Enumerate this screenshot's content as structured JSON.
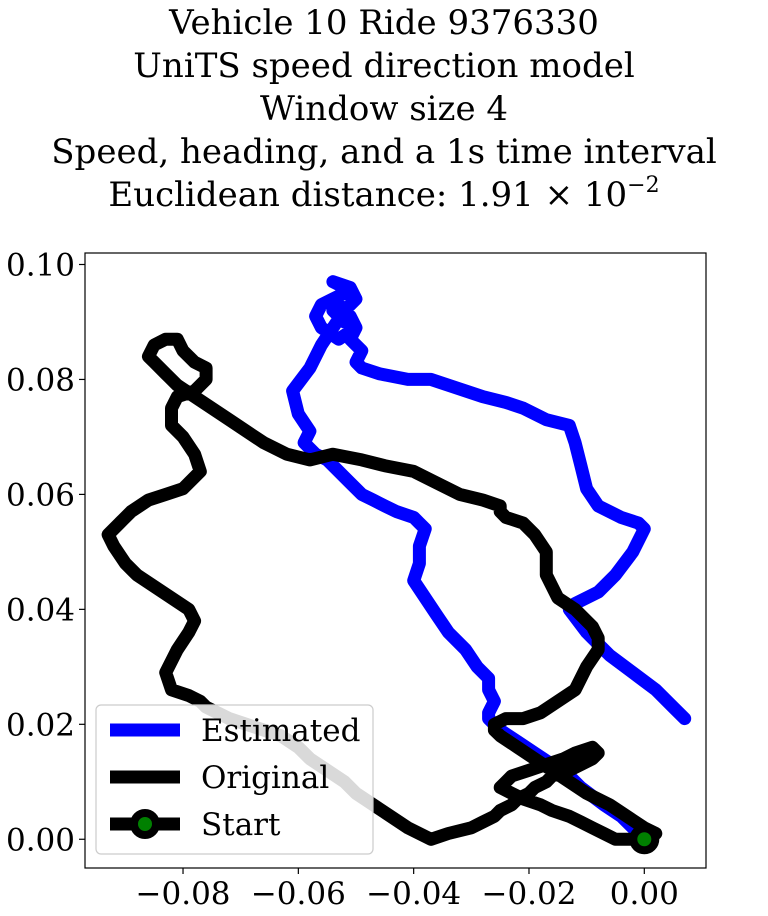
{
  "title": {
    "line1": "Vehicle 10 Ride 9376330",
    "line2": "UniTS speed direction model",
    "line3": "Window size 4",
    "line4": "Speed, heading, and a 1s time interval",
    "line5_prefix": "Euclidean distance: 1.91 × 10",
    "line5_exp": "−2"
  },
  "chart_data": {
    "type": "line",
    "title": "Vehicle 10 Ride 9376330 / UniTS speed direction model / Window size 4 / Speed, heading, and a 1s time interval / Euclidean distance: 1.91 × 10^-2",
    "xlabel": "",
    "ylabel": "",
    "xlim": [
      -0.097,
      0.0107
    ],
    "ylim": [
      -0.005,
      0.102
    ],
    "x_ticks": [
      -0.08,
      -0.06,
      -0.04,
      -0.02,
      0.0
    ],
    "x_tick_labels": [
      "−0.08",
      "−0.06",
      "−0.04",
      "−0.02",
      "0.00"
    ],
    "y_ticks": [
      0.0,
      0.02,
      0.04,
      0.06,
      0.08,
      0.1
    ],
    "y_tick_labels": [
      "0.00",
      "0.02",
      "0.04",
      "0.06",
      "0.08",
      "0.10"
    ],
    "grid": false,
    "legend_position": "lower-left",
    "series": [
      {
        "name": "Estimated",
        "color": "#0000ff",
        "x": [
          0.007,
          0.005,
          0.002,
          -0.002,
          -0.006,
          -0.009,
          -0.01,
          -0.013,
          -0.012,
          -0.008,
          -0.005,
          -0.002,
          0.0,
          -0.001,
          -0.004,
          -0.008,
          -0.01,
          -0.011,
          -0.012,
          -0.013,
          -0.017,
          -0.021,
          -0.024,
          -0.028,
          -0.031,
          -0.034,
          -0.037,
          -0.041,
          -0.046,
          -0.049,
          -0.05,
          -0.049,
          -0.051,
          -0.05,
          -0.051,
          -0.053,
          -0.054,
          -0.052,
          -0.05,
          -0.053,
          -0.056,
          -0.057,
          -0.056,
          -0.054,
          -0.052,
          -0.052,
          -0.054,
          -0.051,
          -0.05,
          -0.052,
          -0.054,
          -0.056,
          -0.058,
          -0.061,
          -0.06,
          -0.058,
          -0.059,
          -0.057,
          -0.055,
          -0.053,
          -0.051,
          -0.049,
          -0.047,
          -0.045,
          -0.043,
          -0.04,
          -0.039,
          -0.038,
          -0.039,
          -0.039,
          -0.04,
          -0.038,
          -0.036,
          -0.034,
          -0.031,
          -0.029,
          -0.027,
          -0.027,
          -0.026,
          -0.027,
          -0.027,
          -0.025,
          -0.022,
          -0.019,
          -0.016,
          -0.013,
          -0.011,
          -0.007,
          -0.004,
          -0.002,
          0.0
        ],
        "y": [
          0.021,
          0.023,
          0.026,
          0.029,
          0.032,
          0.035,
          0.036,
          0.04,
          0.041,
          0.043,
          0.046,
          0.05,
          0.054,
          0.055,
          0.056,
          0.058,
          0.061,
          0.065,
          0.069,
          0.072,
          0.073,
          0.075,
          0.076,
          0.077,
          0.078,
          0.079,
          0.08,
          0.08,
          0.081,
          0.082,
          0.083,
          0.085,
          0.087,
          0.089,
          0.091,
          0.093,
          0.092,
          0.09,
          0.089,
          0.087,
          0.089,
          0.091,
          0.093,
          0.094,
          0.095,
          0.096,
          0.097,
          0.096,
          0.094,
          0.092,
          0.089,
          0.086,
          0.082,
          0.078,
          0.074,
          0.071,
          0.069,
          0.067,
          0.066,
          0.064,
          0.062,
          0.06,
          0.059,
          0.058,
          0.057,
          0.056,
          0.055,
          0.054,
          0.051,
          0.048,
          0.045,
          0.042,
          0.039,
          0.036,
          0.033,
          0.03,
          0.028,
          0.026,
          0.024,
          0.022,
          0.021,
          0.019,
          0.017,
          0.015,
          0.013,
          0.011,
          0.009,
          0.006,
          0.004,
          0.002,
          0.0
        ]
      },
      {
        "name": "Original",
        "color": "#000000",
        "x": [
          0.0,
          0.002,
          0.0,
          -0.003,
          -0.006,
          -0.01,
          -0.013,
          -0.016,
          -0.019,
          -0.022,
          -0.025,
          -0.026,
          -0.026,
          -0.024,
          -0.021,
          -0.018,
          -0.015,
          -0.012,
          -0.01,
          -0.008,
          -0.008,
          -0.009,
          -0.012,
          -0.015,
          -0.017,
          -0.017,
          -0.019,
          -0.021,
          -0.024,
          -0.025,
          -0.025,
          -0.028,
          -0.032,
          -0.036,
          -0.04,
          -0.045,
          -0.049,
          -0.054,
          -0.058,
          -0.062,
          -0.066,
          -0.069,
          -0.072,
          -0.075,
          -0.078,
          -0.081,
          -0.083,
          -0.085,
          -0.086,
          -0.085,
          -0.083,
          -0.081,
          -0.08,
          -0.078,
          -0.076,
          -0.076,
          -0.078,
          -0.081,
          -0.082,
          -0.082,
          -0.08,
          -0.078,
          -0.077,
          -0.08,
          -0.083,
          -0.086,
          -0.089,
          -0.091,
          -0.093,
          -0.092,
          -0.09,
          -0.088,
          -0.085,
          -0.082,
          -0.079,
          -0.078,
          -0.079,
          -0.081,
          -0.083,
          -0.082,
          -0.079,
          -0.077,
          -0.076,
          -0.074,
          -0.072,
          -0.069,
          -0.066,
          -0.063,
          -0.06,
          -0.058,
          -0.055,
          -0.052,
          -0.05,
          -0.047,
          -0.044,
          -0.041,
          -0.037,
          -0.034,
          -0.03,
          -0.028,
          -0.026,
          -0.025,
          -0.023,
          -0.022,
          -0.02,
          -0.019,
          -0.017,
          -0.016,
          -0.013,
          -0.011,
          -0.009,
          -0.008,
          -0.009,
          -0.012,
          -0.014,
          -0.017,
          -0.02,
          -0.023,
          -0.024,
          -0.025,
          -0.023,
          -0.021,
          -0.018,
          -0.016,
          -0.013,
          -0.011,
          -0.009,
          -0.007,
          -0.005,
          -0.004,
          -0.002,
          0.0
        ],
        "y": [
          0.0,
          0.001,
          0.002,
          0.004,
          0.006,
          0.008,
          0.01,
          0.012,
          0.014,
          0.016,
          0.018,
          0.019,
          0.02,
          0.021,
          0.021,
          0.022,
          0.024,
          0.026,
          0.03,
          0.033,
          0.035,
          0.037,
          0.04,
          0.042,
          0.046,
          0.05,
          0.053,
          0.055,
          0.056,
          0.057,
          0.058,
          0.059,
          0.06,
          0.062,
          0.064,
          0.065,
          0.066,
          0.067,
          0.066,
          0.067,
          0.069,
          0.071,
          0.073,
          0.075,
          0.077,
          0.079,
          0.081,
          0.083,
          0.084,
          0.086,
          0.087,
          0.087,
          0.085,
          0.083,
          0.082,
          0.08,
          0.078,
          0.077,
          0.075,
          0.072,
          0.07,
          0.067,
          0.064,
          0.061,
          0.06,
          0.059,
          0.057,
          0.055,
          0.053,
          0.051,
          0.048,
          0.046,
          0.044,
          0.042,
          0.04,
          0.038,
          0.036,
          0.033,
          0.029,
          0.026,
          0.025,
          0.024,
          0.023,
          0.022,
          0.021,
          0.02,
          0.019,
          0.018,
          0.016,
          0.014,
          0.012,
          0.01,
          0.008,
          0.006,
          0.004,
          0.002,
          0.0,
          0.001,
          0.002,
          0.003,
          0.004,
          0.005,
          0.006,
          0.007,
          0.008,
          0.009,
          0.01,
          0.011,
          0.012,
          0.013,
          0.014,
          0.015,
          0.016,
          0.015,
          0.014,
          0.013,
          0.012,
          0.011,
          0.01,
          0.009,
          0.008,
          0.007,
          0.006,
          0.005,
          0.004,
          0.003,
          0.002,
          0.001,
          0.0,
          0.0,
          0.0,
          0.0
        ]
      }
    ],
    "start_point": {
      "name": "Start",
      "x": 0.0,
      "y": 0.0,
      "marker_color": "#008000",
      "edge_color": "#000000"
    },
    "legend": [
      {
        "label": "Estimated",
        "color": "#0000ff",
        "marker": false
      },
      {
        "label": "Original",
        "color": "#000000",
        "marker": false
      },
      {
        "label": "Start",
        "color": "#000000",
        "marker": true,
        "marker_color": "#008000"
      }
    ]
  }
}
